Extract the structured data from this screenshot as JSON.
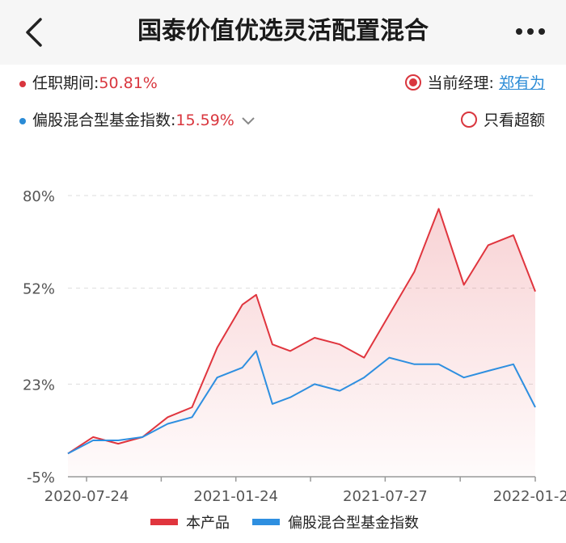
{
  "header": {
    "title": "国泰价值优选灵活配置混合",
    "back_icon": "chevron-left-icon",
    "more_icon": "more-dots-icon"
  },
  "tenure": {
    "label": "任职期间:",
    "value": "50.81%",
    "color": "#d9363e"
  },
  "manager": {
    "label": "当前经理: ",
    "name": "郑有为",
    "selected": true
  },
  "benchmark": {
    "label": "偏股混合型基金指数:",
    "value": "15.59%",
    "color": "#2a8bd6"
  },
  "excess_option": {
    "label": "只看超额",
    "selected": false
  },
  "legend": {
    "product": "本产品",
    "index": "偏股混合型基金指数"
  },
  "colors": {
    "product": "#e0353e",
    "index": "#2e8fe0",
    "grid": "#dddddd"
  },
  "chart_data": {
    "type": "line",
    "y_ticks": [
      "80%",
      "52%",
      "23%",
      "-5%"
    ],
    "x_ticks": [
      "2020-07-24",
      "2021-01-24",
      "2021-07-27",
      "2022-01-28"
    ],
    "ylim": [
      -5,
      80
    ],
    "x": [
      "2020-07-01",
      "2020-08-01",
      "2020-09-01",
      "2020-10-01",
      "2020-11-01",
      "2020-12-01",
      "2021-01-01",
      "2021-02-01",
      "2021-02-18",
      "2021-03-10",
      "2021-04-01",
      "2021-05-01",
      "2021-06-01",
      "2021-07-01",
      "2021-08-01",
      "2021-09-01",
      "2021-10-01",
      "2021-11-01",
      "2021-12-01",
      "2022-01-01",
      "2022-01-28"
    ],
    "series": [
      {
        "name": "本产品",
        "values": [
          2,
          7,
          5,
          7,
          13,
          16,
          34,
          47,
          50,
          35,
          33,
          37,
          35,
          31,
          44,
          57,
          76,
          53,
          65,
          68,
          51
        ]
      },
      {
        "name": "偏股混合型基金指数",
        "values": [
          2,
          6,
          6,
          7,
          11,
          13,
          25,
          28,
          33,
          17,
          19,
          23,
          21,
          25,
          31,
          29,
          29,
          25,
          27,
          29,
          16
        ]
      }
    ]
  }
}
